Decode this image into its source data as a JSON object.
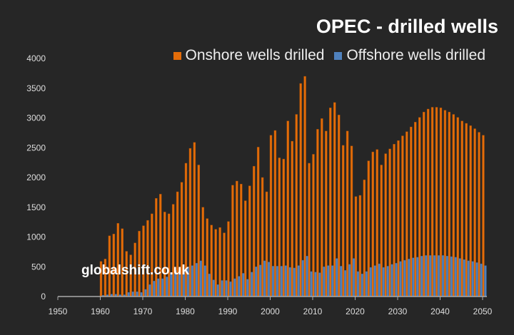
{
  "chart_data": {
    "type": "bar",
    "title": "OPEC - drilled wells",
    "xlabel": "",
    "ylabel": "",
    "ylim": [
      0,
      4000
    ],
    "xlim": [
      1950,
      2050
    ],
    "yticks": [
      0,
      500,
      1000,
      1500,
      2000,
      2500,
      3000,
      3500,
      4000
    ],
    "xticks": [
      1950,
      1960,
      1970,
      1980,
      1990,
      2000,
      2010,
      2020,
      2030,
      2040,
      2050
    ],
    "grid": false,
    "legend_position": "top-right",
    "watermark": "globalshift.co.uk",
    "x_start": 1960,
    "series": [
      {
        "name": "Onshore wells drilled",
        "color": "#e36c09",
        "values": [
          590,
          630,
          1020,
          1050,
          1230,
          1140,
          760,
          700,
          900,
          1100,
          1190,
          1280,
          1390,
          1650,
          1720,
          1420,
          1390,
          1550,
          1760,
          1920,
          2240,
          2490,
          2590,
          2210,
          1500,
          1310,
          1200,
          1130,
          1160,
          1070,
          1260,
          1870,
          1940,
          1890,
          1610,
          1860,
          2190,
          2510,
          2000,
          1760,
          2710,
          2790,
          2330,
          2310,
          2950,
          2610,
          3060,
          3580,
          3700,
          2240,
          2390,
          2810,
          2990,
          2780,
          3170,
          3260,
          3050,
          2540,
          2780,
          2530,
          1680,
          1700,
          1960,
          2280,
          2430,
          2470,
          2210,
          2400,
          2480,
          2560,
          2620,
          2700,
          2770,
          2850,
          2930,
          3010,
          3100,
          3150,
          3180,
          3180,
          3170,
          3130,
          3100,
          3060,
          3010,
          2950,
          2910,
          2870,
          2820,
          2760,
          2710
        ]
      },
      {
        "name": "Offshore wells drilled",
        "color": "#4f81bd",
        "values": [
          20,
          30,
          40,
          40,
          30,
          30,
          70,
          80,
          80,
          70,
          120,
          200,
          260,
          300,
          300,
          330,
          400,
          440,
          380,
          430,
          490,
          520,
          560,
          600,
          520,
          380,
          280,
          200,
          270,
          270,
          250,
          300,
          340,
          390,
          290,
          410,
          500,
          530,
          600,
          580,
          510,
          510,
          510,
          520,
          490,
          480,
          520,
          610,
          680,
          420,
          410,
          400,
          500,
          520,
          520,
          640,
          510,
          440,
          540,
          640,
          420,
          380,
          420,
          490,
          520,
          550,
          490,
          510,
          540,
          560,
          590,
          610,
          630,
          650,
          660,
          680,
          690,
          690,
          690,
          690,
          690,
          680,
          670,
          660,
          640,
          620,
          600,
          590,
          570,
          550,
          520
        ]
      }
    ]
  }
}
